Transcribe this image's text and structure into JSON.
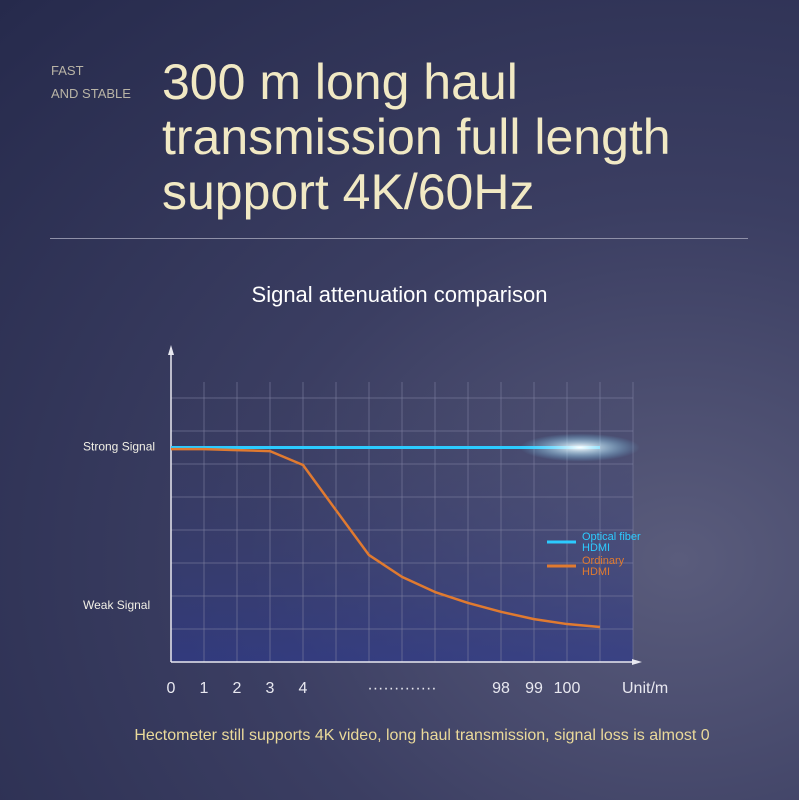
{
  "tagline": [
    "FAST",
    "AND STABLE"
  ],
  "headline": [
    "300 m long haul",
    "transmission full length",
    "support 4K/60Hz"
  ],
  "chart_data": {
    "type": "line",
    "title": "Signal attenuation comparison",
    "x_unit": "Unit/m",
    "categories": [
      "0",
      "1",
      "2",
      "3",
      "4",
      null,
      null,
      "·············",
      null,
      null,
      "98",
      "99",
      "100",
      null
    ],
    "series": [
      {
        "name": "Optical fiber HDMI",
        "color": "#2ccbff",
        "values": [
          6.5,
          6.5,
          6.5,
          6.5,
          6.5,
          6.5,
          6.5,
          6.5,
          6.5,
          6.5,
          6.5,
          6.5,
          6.5,
          6.5
        ]
      },
      {
        "name": "Ordinary HDMI",
        "color": "#e07a30",
        "values": [
          6.45,
          6.45,
          6.42,
          6.39,
          5.97,
          4.6,
          3.24,
          2.58,
          2.12,
          1.79,
          1.52,
          1.3,
          1.15,
          1.06
        ]
      }
    ],
    "ylim": [
      0,
      9.5
    ],
    "yticks": [
      {
        "value": 6.5,
        "label": "Strong Signal"
      },
      {
        "value": 1.7,
        "label": "Weak Signal"
      }
    ],
    "caption": "Hectometer still supports 4K video, long haul transmission, signal loss is almost 0"
  }
}
